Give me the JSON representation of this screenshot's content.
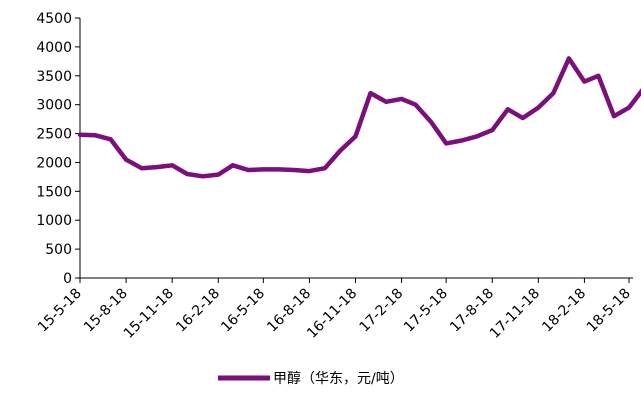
{
  "chart_data": {
    "type": "line",
    "title": "",
    "xlabel": "",
    "ylabel": "",
    "ylim": [
      0,
      4500
    ],
    "y_ticks": [
      0,
      500,
      1000,
      1500,
      2000,
      2500,
      3000,
      3500,
      4000,
      4500
    ],
    "x_ticks": [
      "15-5-18",
      "15-8-18",
      "15-11-18",
      "16-2-18",
      "16-5-18",
      "16-8-18",
      "16-11-18",
      "17-2-18",
      "17-5-18",
      "17-8-18",
      "17-11-18",
      "18-2-18",
      "18-5-18"
    ],
    "grid": false,
    "legend_position": "bottom",
    "color": "#7b0f7b",
    "series": [
      {
        "name": "甲醇（华东，元/吨）",
        "x": [
          "15-5-18",
          "15-6-18",
          "15-7-18",
          "15-8-18",
          "15-9-18",
          "15-10-18",
          "15-11-18",
          "15-12-18",
          "16-1-18",
          "16-2-18",
          "16-3-18",
          "16-4-18",
          "16-5-18",
          "16-6-18",
          "16-7-18",
          "16-8-18",
          "16-9-18",
          "16-10-18",
          "16-11-18",
          "16-12-18",
          "17-1-18",
          "17-2-18",
          "17-3-18",
          "17-4-18",
          "17-5-18",
          "17-6-18",
          "17-7-18",
          "17-8-18",
          "17-9-18",
          "17-10-18",
          "17-11-18",
          "17-12-18",
          "18-1-18",
          "18-2-18",
          "18-3-18",
          "18-4-18",
          "18-5-18",
          "18-6-18"
        ],
        "values": [
          2480,
          2470,
          2400,
          2050,
          1900,
          1920,
          1950,
          1800,
          1760,
          1790,
          1950,
          1870,
          1880,
          1880,
          1870,
          1850,
          1900,
          2200,
          2450,
          3200,
          3050,
          3100,
          3000,
          2700,
          2330,
          2380,
          2450,
          2560,
          2920,
          2770,
          2950,
          3200,
          3800,
          3400,
          3500,
          2800,
          2950,
          3300
        ]
      }
    ]
  }
}
